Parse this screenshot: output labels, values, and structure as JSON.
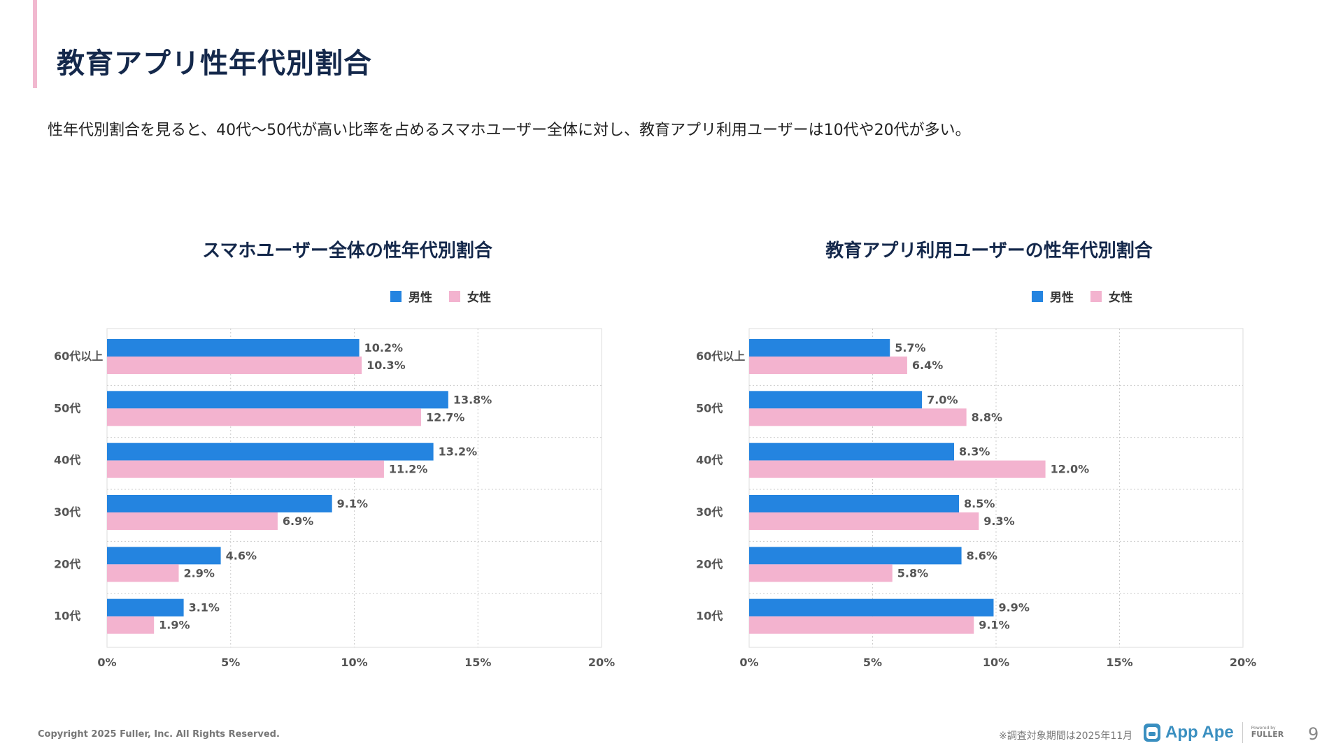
{
  "header": {
    "title": "教育アプリ性年代別割合",
    "subtitle": "性年代別割合を見ると、40代～50代が高い比率を占めるスマホユーザー全体に対し、教育アプリ利用ユーザーは10代や20代が多い。"
  },
  "colors": {
    "male": "#2484e0",
    "female": "#f3b3cf",
    "accent": "#f1b8cf",
    "title": "#14284b"
  },
  "chart_data": [
    {
      "type": "bar",
      "orientation": "horizontal",
      "title": "スマホユーザー全体の性年代別割合",
      "categories": [
        "60代以上",
        "50代",
        "40代",
        "30代",
        "20代",
        "10代"
      ],
      "series": [
        {
          "name": "男性",
          "values": [
            10.2,
            13.8,
            13.2,
            9.1,
            4.6,
            3.1
          ],
          "labels": [
            "10.2%",
            "13.8%",
            "13.2%",
            "9.1%",
            "4.6%",
            "3.1%"
          ]
        },
        {
          "name": "女性",
          "values": [
            10.3,
            12.7,
            11.2,
            6.9,
            2.9,
            1.9
          ],
          "labels": [
            "10.3%",
            "12.7%",
            "11.2%",
            "6.9%",
            "2.9%",
            "1.9%"
          ]
        }
      ],
      "xlim": [
        0,
        20
      ],
      "xticks": [
        "0%",
        "5%",
        "10%",
        "15%",
        "20%"
      ],
      "grid": true,
      "legend": "top-right"
    },
    {
      "type": "bar",
      "orientation": "horizontal",
      "title": "教育アプリ利用ユーザーの性年代別割合",
      "categories": [
        "60代以上",
        "50代",
        "40代",
        "30代",
        "20代",
        "10代"
      ],
      "series": [
        {
          "name": "男性",
          "values": [
            5.7,
            7.0,
            8.3,
            8.5,
            8.6,
            9.9
          ],
          "labels": [
            "5.7%",
            "7.0%",
            "8.3%",
            "8.5%",
            "8.6%",
            "9.9%"
          ]
        },
        {
          "name": "女性",
          "values": [
            6.4,
            8.8,
            12.0,
            9.3,
            5.8,
            9.1
          ],
          "labels": [
            "6.4%",
            "8.8%",
            "12.0%",
            "9.3%",
            "5.8%",
            "9.1%"
          ]
        }
      ],
      "xlim": [
        0,
        20
      ],
      "xticks": [
        "0%",
        "5%",
        "10%",
        "15%",
        "20%"
      ],
      "grid": true,
      "legend": "top-right"
    }
  ],
  "footer": {
    "copyright": "Copyright 2025 Fuller, Inc. All Rights Reserved.",
    "note": "※調査対象期間は2025年11月",
    "logo_text": "App Ape",
    "powered_by": "Powered by",
    "fuller": "FULLER",
    "page_number": "9"
  }
}
